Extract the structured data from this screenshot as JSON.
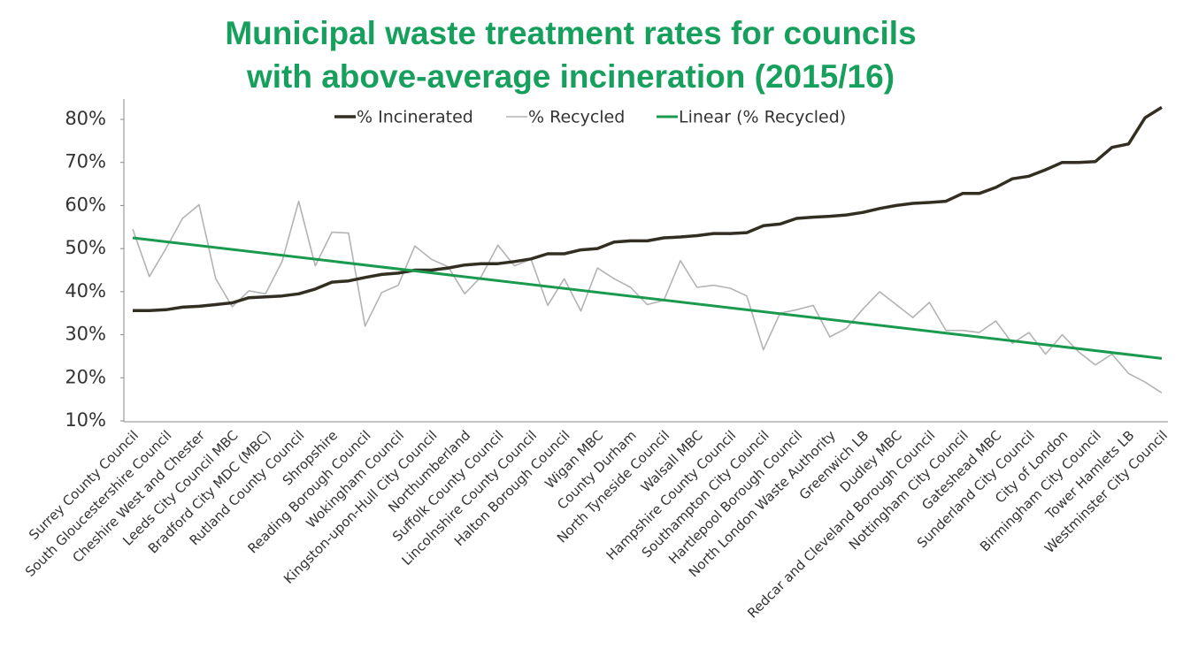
{
  "chart_data": {
    "type": "line",
    "title": [
      "Municipal waste treatment rates for councils",
      "with above-average incineration (2015/16)"
    ],
    "categories": [
      "Surrey County Council",
      null,
      "South Gloucestershire Council",
      null,
      "Cheshire West and Chester",
      null,
      "Leeds City Council MBC",
      null,
      "Bradford City MDC (MBC)",
      null,
      "Rutland County Council",
      null,
      "Shropshire",
      null,
      "Reading Borough Council",
      null,
      "Wokingham Council",
      null,
      "Kingston-upon-Hull City Council",
      null,
      "Northumberland",
      null,
      "Suffolk County Council",
      null,
      "Lincolnshire County Council",
      null,
      "Halton Borough Council",
      null,
      "Wigan MBC",
      null,
      "County Durham",
      null,
      "North Tyneside Council",
      null,
      "Walsall MBC",
      null,
      "Hampshire County Council",
      null,
      "Southampton City Council",
      null,
      "Hartlepool Borough Council",
      null,
      "North London Waste Authority",
      null,
      "Greenwich LB",
      null,
      "Dudley MBC",
      null,
      "Redcar and Cleveland Borough Council",
      null,
      "Nottingham City Council",
      null,
      "Gateshead MBC",
      null,
      "Sunderland City Council",
      null,
      "City of London",
      null,
      "Birmingham City Council",
      null,
      "Tower Hamlets LB",
      null,
      "Westminster City Council"
    ],
    "series": [
      {
        "name": "% Incinerated",
        "color": "#332e22",
        "values": [
          35.6,
          35.6,
          35.8,
          36.4,
          36.6,
          37.0,
          37.4,
          38.6,
          38.8,
          39.0,
          39.5,
          40.6,
          42.2,
          42.5,
          43.3,
          44.0,
          44.3,
          45.0,
          45.0,
          45.5,
          46.2,
          46.5,
          46.5,
          47.0,
          47.6,
          48.8,
          48.8,
          49.7,
          50.0,
          51.5,
          51.8,
          51.8,
          52.5,
          52.7,
          53.0,
          53.5,
          53.5,
          53.7,
          55.3,
          55.7,
          57.0,
          57.3,
          57.5,
          57.8,
          58.4,
          59.3,
          60.0,
          60.5,
          60.7,
          61.0,
          62.8,
          62.8,
          64.2,
          66.2,
          66.8,
          68.3,
          70.0,
          70.0,
          70.2,
          73.5,
          74.3,
          80.4,
          82.8
        ]
      },
      {
        "name": "% Recycled",
        "color": "#b3b3b3",
        "values": [
          54.5,
          43.5,
          50.0,
          57.0,
          60.2,
          43.0,
          36.5,
          40.2,
          39.5,
          47.0,
          61.0,
          46.0,
          53.8,
          53.6,
          32.0,
          39.8,
          41.5,
          50.6,
          47.5,
          45.8,
          39.5,
          43.5,
          50.8,
          46.0,
          47.5,
          36.8,
          43.0,
          35.5,
          45.5,
          43.0,
          41.0,
          37.0,
          38.0,
          47.2,
          41.0,
          41.5,
          40.8,
          39.0,
          26.5,
          35.0,
          35.8,
          36.8,
          29.5,
          31.5,
          36.0,
          40.0,
          37.0,
          34.0,
          37.5,
          31.0,
          31.0,
          30.5,
          33.2,
          28.0,
          30.5,
          25.5,
          30.0,
          26.0,
          23.0,
          25.5,
          21.0,
          19.0,
          16.5
        ]
      }
    ],
    "trendline": {
      "name": "Linear (% Recycled)",
      "color": "#1a9a4f",
      "values": [
        52.5,
        24.5
      ]
    },
    "ylim": [
      10,
      83.5
    ],
    "yticks": [
      {
        "value": 10,
        "label": "10%"
      },
      {
        "value": 20,
        "label": "20%"
      },
      {
        "value": 30,
        "label": "30%"
      },
      {
        "value": 40,
        "label": "40%"
      },
      {
        "value": 50,
        "label": "50%"
      },
      {
        "value": 60,
        "label": "60%"
      },
      {
        "value": 70,
        "label": "70%"
      },
      {
        "value": 80,
        "label": "80%"
      }
    ],
    "grid": false,
    "legend": "top"
  }
}
